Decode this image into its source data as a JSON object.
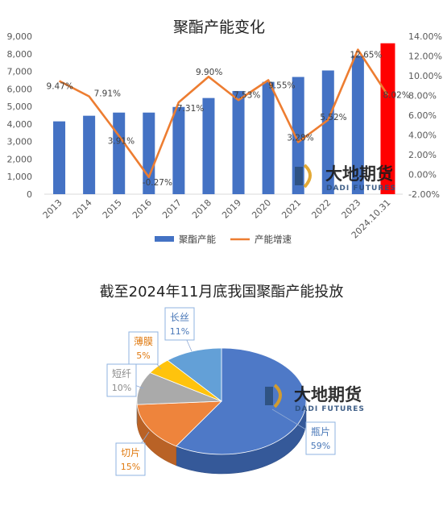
{
  "chart_data": [
    {
      "type": "bar+line",
      "title": "聚酯产能变化",
      "categories": [
        "2013",
        "2014",
        "2015",
        "2016",
        "2017",
        "2018",
        "2019",
        "2020",
        "2021",
        "2022",
        "2023",
        "2024.10.31"
      ],
      "series": [
        {
          "name": "聚酯产能",
          "type": "bar",
          "axis": "left",
          "values": [
            4150,
            4470,
            4650,
            4650,
            4970,
            5480,
            5880,
            6400,
            6680,
            7050,
            7900,
            8600
          ],
          "highlight_last": true
        },
        {
          "name": "产能增速",
          "type": "line",
          "axis": "right",
          "values": [
            9.47,
            7.91,
            3.91,
            -0.27,
            7.31,
            9.9,
            7.53,
            9.55,
            3.28,
            5.52,
            12.65,
            8.02
          ],
          "labels": [
            "9.47%",
            "7.91%",
            "3.91%",
            "-0.27%",
            "7.31%",
            "9.90%",
            "7.53%",
            "9.55%",
            "3.28%",
            "5.52%",
            "12.65%",
            "8.02%"
          ]
        }
      ],
      "y_left": {
        "min": 0,
        "max": 9000,
        "ticks": [
          "0",
          "1,000",
          "2,000",
          "3,000",
          "4,000",
          "5,000",
          "6,000",
          "7,000",
          "8,000",
          "9,000"
        ]
      },
      "y_right": {
        "min": -2,
        "max": 14,
        "ticks": [
          "-2.00%",
          "0.00%",
          "2.00%",
          "4.00%",
          "6.00%",
          "8.00%",
          "10.00%",
          "12.00%",
          "14.00%"
        ]
      },
      "grid": false,
      "legend_position": "bottom",
      "colors": {
        "bar": "#4472c4",
        "bar_highlight": "#ff0000",
        "line": "#ed7d31"
      }
    },
    {
      "type": "pie",
      "title": "截至2024年11月底我国聚酯产能投放",
      "slices": [
        {
          "name": "瓶片",
          "pct": "59%",
          "value": 59,
          "color": "#4472c4"
        },
        {
          "name": "切片",
          "pct": "15%",
          "value": 15,
          "color": "#ed7d31"
        },
        {
          "name": "短纤",
          "pct": "10%",
          "value": 10,
          "color": "#a5a5a5"
        },
        {
          "name": "薄膜",
          "pct": "5%",
          "value": 5,
          "color": "#ffc000"
        },
        {
          "name": "长丝",
          "pct": "11%",
          "value": 11,
          "color": "#5b9bd5"
        }
      ]
    }
  ],
  "watermark": {
    "main": "大地期货",
    "sub": "DADI FUTURES"
  }
}
